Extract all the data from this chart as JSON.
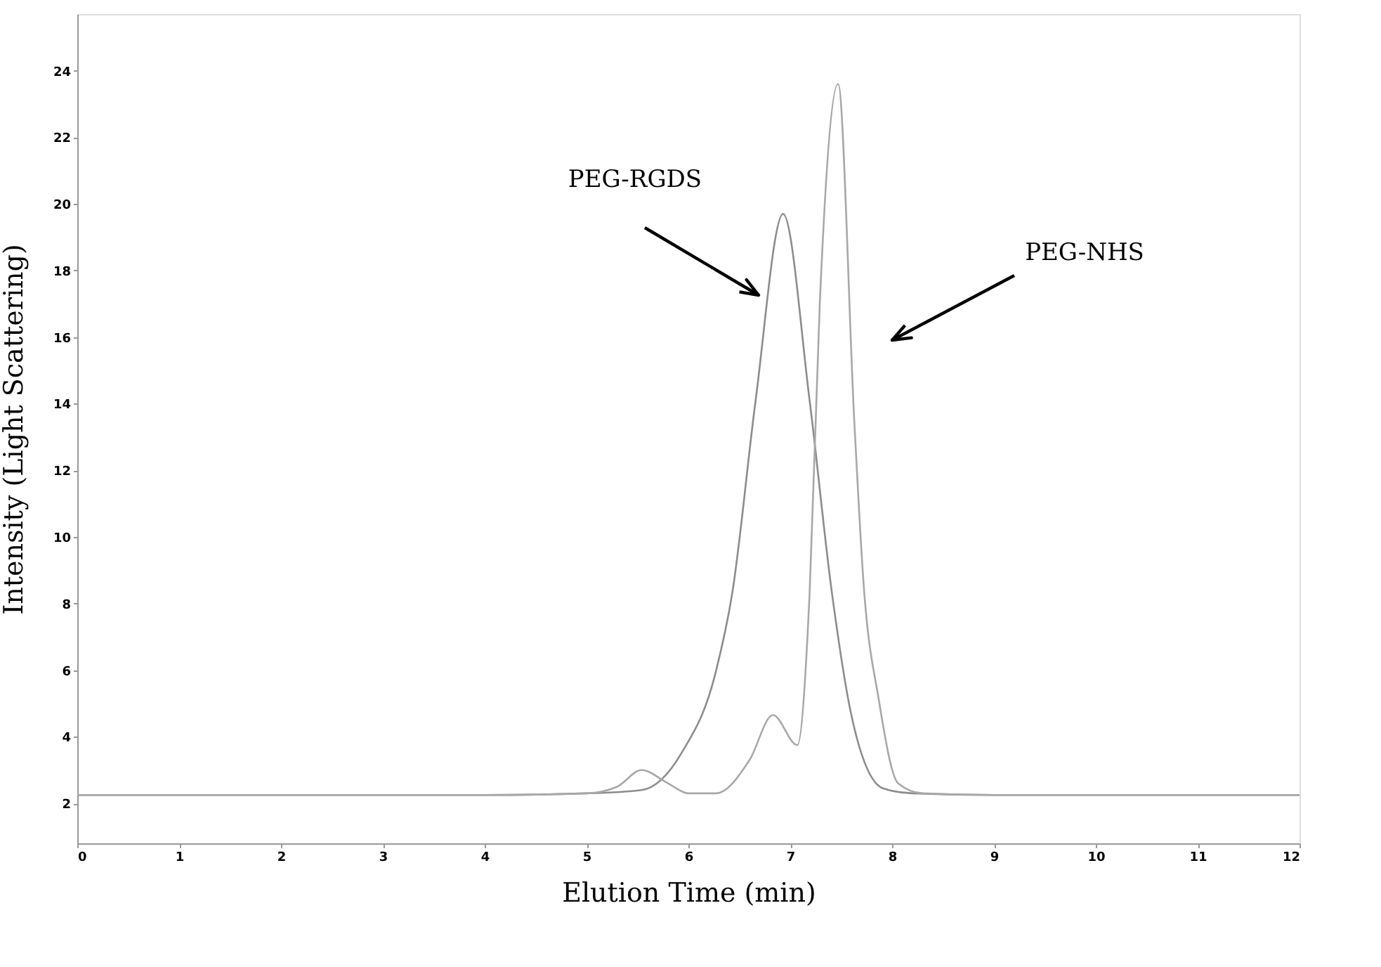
{
  "chart_data": {
    "type": "line",
    "xlabel": "Elution Time (min)",
    "ylabel": "Intensity (Light Scattering)",
    "xlim": [
      0,
      12
    ],
    "xticks": [
      0,
      1,
      2,
      3,
      4,
      5,
      6,
      7,
      8,
      9,
      10,
      11,
      12
    ],
    "ylim": [
      0.8,
      25.7
    ],
    "yticks": [
      2,
      4,
      6,
      8,
      10,
      12,
      14,
      16,
      18,
      20,
      22,
      24
    ],
    "grid": false,
    "legend": false,
    "marker": "none",
    "line_style": "solid",
    "annotations": [
      "PEG-RGDS",
      "PEG-NHS"
    ],
    "series": [
      {
        "color": "#8c8c8c",
        "x": [
          0,
          2,
          4,
          5,
          5.54,
          5.93,
          6.27,
          6.43,
          6.66,
          6.93,
          7.19,
          7.41,
          7.6,
          7.91,
          8.2,
          9,
          10,
          11,
          12
        ],
        "values": [
          2.25,
          2.25,
          2.25,
          2.3,
          2.4,
          3.5,
          5.96,
          8.3,
          14.1,
          19.7,
          14.1,
          8.3,
          4.65,
          2.45,
          2.3,
          2.25,
          2.25,
          2.25,
          2.25
        ]
      },
      {
        "color": "#a8a8a8",
        "x": [
          0,
          2,
          4,
          5,
          5.3,
          5.54,
          5.8,
          6.0,
          6.27,
          6.6,
          6.83,
          7.07,
          7.19,
          7.29,
          7.47,
          7.63,
          7.72,
          7.87,
          8.06,
          8.3,
          9,
          10,
          11,
          12
        ],
        "values": [
          2.25,
          2.25,
          2.25,
          2.3,
          2.5,
          3.0,
          2.6,
          2.3,
          2.3,
          3.3,
          4.65,
          3.75,
          8.3,
          17.0,
          23.6,
          13.4,
          8.6,
          5.1,
          2.6,
          2.3,
          2.25,
          2.25,
          2.25,
          2.25
        ]
      }
    ]
  }
}
